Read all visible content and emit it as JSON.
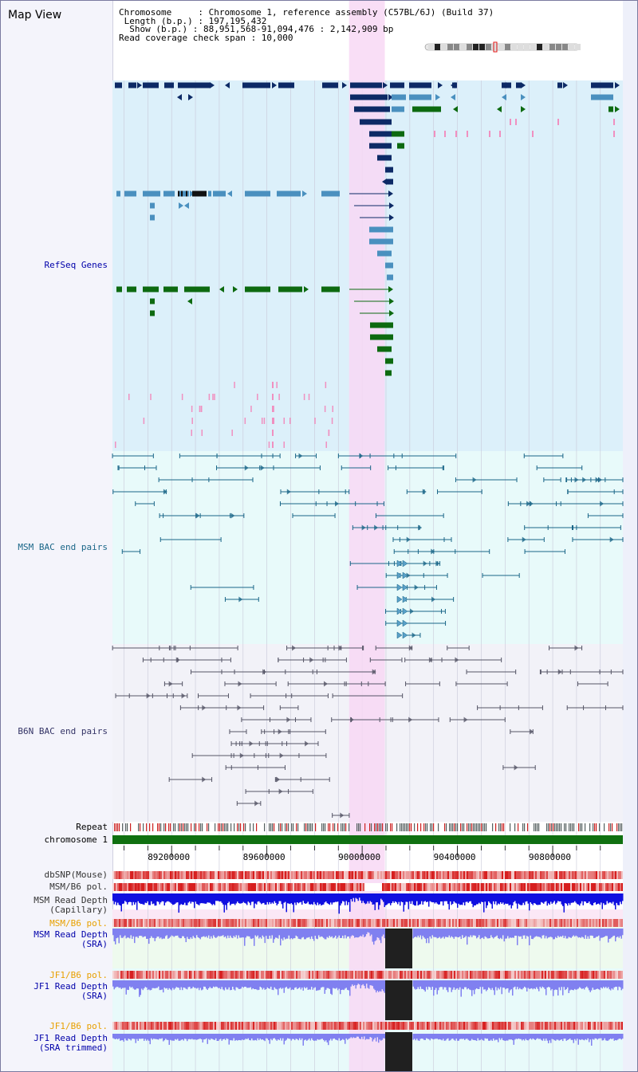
{
  "header": {
    "title": "Map View",
    "lines": [
      "Chromosome     : Chromosome 1, reference assembly (C57BL/6J) (Build 37)",
      " Length (b.p.) : 197,195,432",
      "  Show (b.p.) : 88,951,568-91,094,476 : 2,142,909 bp",
      "Read coverage check span : 10,000"
    ]
  },
  "region": {
    "start": 88951568,
    "end": 91094476,
    "highlight_start": 89945000,
    "highlight_end": 90095000
  },
  "tracks": {
    "refseq": {
      "label": "RefSeq Genes",
      "color": "#0000aa"
    },
    "msm_bac": {
      "label": "MSM BAC end pairs",
      "color": "#1a6688"
    },
    "b6n_bac": {
      "label": "B6N BAC end pairs",
      "color": "#333366"
    },
    "repeat": {
      "label": "Repeat"
    },
    "chromosome": {
      "label": "chromosome 1"
    },
    "dbsnp": {
      "label": "dbSNP(Mouse)"
    },
    "msm_pol": {
      "label": "MSM/B6 pol."
    },
    "msm_cap": {
      "label": "MSM Read Depth\n(Capillary)"
    },
    "msm_pol2": {
      "label": "MSM/B6 pol.",
      "color": "#e8a000"
    },
    "msm_sra": {
      "label": "MSM Read Depth\n(SRA)",
      "color": "#0000aa"
    },
    "jf1_pol": {
      "label": "JF1/B6 pol.",
      "color": "#e8a000"
    },
    "jf1_sra": {
      "label": "JF1 Read Depth\n(SRA)",
      "color": "#0000aa"
    },
    "jf1_pol2": {
      "label": "JF1/B6 pol.",
      "color": "#e8a000"
    },
    "jf1_trim": {
      "label": "JF1 Read Depth\n(SRA trimmed)",
      "color": "#0000aa"
    }
  },
  "axis": {
    "ticks": [
      "89200000",
      "89600000",
      "90000000",
      "90400000",
      "90800000"
    ],
    "tick_positions": [
      89200000,
      89600000,
      90000000,
      90400000,
      90800000
    ]
  },
  "colors": {
    "refseq_bg": "#dcf0fa",
    "msm_bg": "#e8fafa",
    "b6n_bg": "#f2f2f8",
    "highlight": "#f8d8f4",
    "gene_dark": "#0d2a66",
    "gene_mid": "#4a90bf",
    "gene_green": "#0d6a10",
    "chrom_green": "#107010",
    "depth_blue": "#1010e0",
    "depth_lav": "#8080f0"
  }
}
